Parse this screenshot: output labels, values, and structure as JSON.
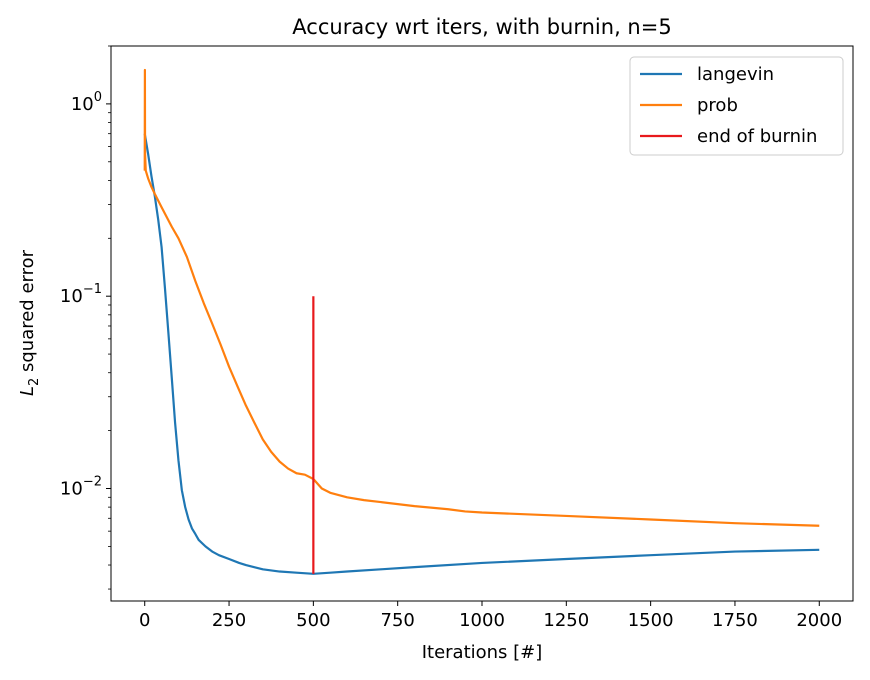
{
  "chart_data": {
    "type": "line",
    "title": "Accuracy wrt iters, with burnin, n=5",
    "xlabel": "Iterations [#]",
    "ylabel": "L2 squared error",
    "ylabel_main": "L",
    "ylabel_sub": "2",
    "ylabel_rest": " squared error",
    "xscale": "linear",
    "yscale": "log",
    "xlim": [
      -100,
      2100
    ],
    "ylim": [
      0.0026,
      2.0
    ],
    "xticks": [
      0,
      250,
      500,
      750,
      1000,
      1250,
      1500,
      1750,
      2000
    ],
    "xtick_labels": [
      "0",
      "250",
      "500",
      "750",
      "1000",
      "1250",
      "1500",
      "1750",
      "2000"
    ],
    "yticks": [
      1,
      0.1,
      0.01
    ],
    "ytick_labels": [
      {
        "base": "10",
        "exp": "0"
      },
      {
        "base": "10",
        "exp": "−1"
      },
      {
        "base": "10",
        "exp": "−2"
      }
    ],
    "grid": false,
    "legend_position": "top-right",
    "series": [
      {
        "name": "langevin",
        "color": "#1f77b4",
        "x": [
          0,
          10,
          20,
          30,
          40,
          50,
          60,
          70,
          80,
          90,
          100,
          110,
          120,
          130,
          140,
          150,
          160,
          180,
          200,
          220,
          250,
          280,
          300,
          350,
          400,
          450,
          500,
          550,
          600,
          700,
          800,
          1000,
          1250,
          1500,
          1750,
          2000
        ],
        "y": [
          0.7,
          0.55,
          0.42,
          0.33,
          0.25,
          0.18,
          0.11,
          0.065,
          0.038,
          0.022,
          0.014,
          0.0098,
          0.008,
          0.0069,
          0.0062,
          0.0058,
          0.0054,
          0.005,
          0.0047,
          0.0045,
          0.0043,
          0.0041,
          0.004,
          0.0038,
          0.0037,
          0.00365,
          0.0036,
          0.00365,
          0.0037,
          0.0038,
          0.0039,
          0.0041,
          0.0043,
          0.0045,
          0.0047,
          0.0048
        ]
      },
      {
        "name": "prob",
        "color": "#ff7f0e",
        "x": [
          0,
          0.5,
          1,
          3,
          10,
          20,
          30,
          50,
          80,
          100,
          125,
          150,
          175,
          200,
          225,
          250,
          275,
          300,
          325,
          350,
          375,
          400,
          425,
          450,
          475,
          500,
          525,
          550,
          600,
          650,
          700,
          800,
          900,
          950,
          1000,
          1250,
          1500,
          1750,
          2000
        ],
        "y": [
          0.45,
          1.5,
          0.55,
          0.45,
          0.41,
          0.37,
          0.34,
          0.29,
          0.23,
          0.2,
          0.16,
          0.12,
          0.092,
          0.072,
          0.056,
          0.043,
          0.034,
          0.027,
          0.022,
          0.018,
          0.0155,
          0.0138,
          0.0127,
          0.012,
          0.0118,
          0.0112,
          0.01,
          0.0095,
          0.009,
          0.0087,
          0.0085,
          0.0081,
          0.0078,
          0.0076,
          0.0075,
          0.0072,
          0.0069,
          0.0066,
          0.0064
        ]
      },
      {
        "name": "end of burnin",
        "color": "#e8191c",
        "x": [
          500,
          500
        ],
        "y": [
          0.0036,
          0.1
        ]
      }
    ]
  }
}
